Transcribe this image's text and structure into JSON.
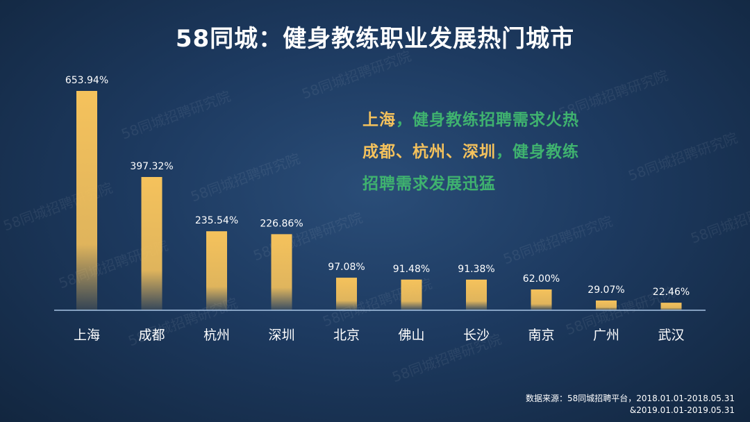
{
  "title": "58同城：健身教练职业发展热门城市",
  "watermark_text": "58同城招聘研究院",
  "callout": {
    "line1_city": "上海",
    "line1_rest": "，健身教练招聘需求火热",
    "line2_cities": "成都、杭州、深圳",
    "line2_rest": "，健身教练",
    "line3": "招聘需求发展迅猛"
  },
  "source": {
    "line1": "数据来源：58同城招聘平台，2018.01.01-2018.05.31",
    "line2": "&2019.01.01-2019.05.31"
  },
  "colors": {
    "bar": "#f5c25c",
    "axis": "#a9c6e6",
    "highlight": "#f5c25c",
    "accent_green": "#3fb26f"
  },
  "chart_data": {
    "type": "bar",
    "categories": [
      "上海",
      "成都",
      "杭州",
      "深圳",
      "北京",
      "佛山",
      "长沙",
      "南京",
      "广州",
      "武汉"
    ],
    "values": [
      653.94,
      397.32,
      235.54,
      226.86,
      97.08,
      91.48,
      91.38,
      62.0,
      29.07,
      22.46
    ],
    "value_labels": [
      "653.94%",
      "397.32%",
      "235.54%",
      "226.86%",
      "97.08%",
      "91.48%",
      "91.38%",
      "62.00%",
      "29.07%",
      "22.46%"
    ],
    "title": "58同城：健身教练职业发展热门城市",
    "xlabel": "",
    "ylabel": "",
    "ylim": [
      0,
      653.94
    ],
    "grid": false,
    "legend": "none"
  }
}
